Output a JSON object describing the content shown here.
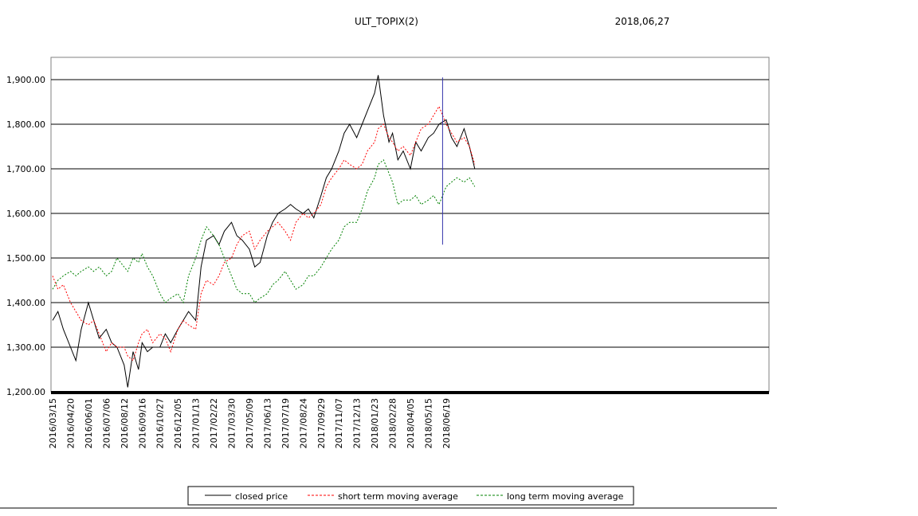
{
  "header": {
    "title": "ULT_TOPIX(2)",
    "date": "2018,06,27"
  },
  "chart_data": {
    "type": "line",
    "title": "ULT_TOPIX(2)",
    "ylim": [
      1200,
      1950
    ],
    "grid": "horizontal",
    "legend_position": "bottom",
    "x_tick_labels": [
      "2016/03/15",
      "2016/04/20",
      "2016/06/01",
      "2016/07/06",
      "2016/08/12",
      "2016/09/16",
      "2016/10/27",
      "2016/12/05",
      "2017/01/13",
      "2017/02/22",
      "2017/03/30",
      "2017/05/09",
      "2017/06/13",
      "2017/07/19",
      "2017/08/24",
      "2017/09/29",
      "2017/11/07",
      "2017/12/13",
      "2018/01/23",
      "2018/02/28",
      "2018/04/05",
      "2018/05/15",
      "2018/06/19"
    ],
    "y_tick_values": [
      1200,
      1300,
      1400,
      1500,
      1600,
      1700,
      1800,
      1900
    ],
    "y_tick_labels": [
      "1,200.00",
      "1,300.00",
      "1,400.00",
      "1,500.00",
      "1,600.00",
      "1,700.00",
      "1,800.00",
      "1,900.00"
    ],
    "series": [
      {
        "name": "closed price",
        "color": "#000000",
        "style": "solid",
        "values": [
          [
            0,
            1360
          ],
          [
            0.3,
            1380
          ],
          [
            0.6,
            1340
          ],
          [
            1,
            1300
          ],
          [
            1.3,
            1270
          ],
          [
            1.6,
            1340
          ],
          [
            2,
            1400
          ],
          [
            2.3,
            1360
          ],
          [
            2.6,
            1320
          ],
          [
            3,
            1340
          ],
          [
            3.3,
            1310
          ],
          [
            3.6,
            1300
          ],
          [
            4,
            1260
          ],
          [
            4.2,
            1210
          ],
          [
            4.5,
            1290
          ],
          [
            4.8,
            1250
          ],
          [
            5,
            1310
          ],
          [
            5.3,
            1290
          ],
          [
            5.6,
            1300
          ],
          [
            6,
            1300
          ],
          [
            6.3,
            1330
          ],
          [
            6.6,
            1310
          ],
          [
            7,
            1340
          ],
          [
            7.3,
            1360
          ],
          [
            7.6,
            1380
          ],
          [
            8,
            1360
          ],
          [
            8.3,
            1480
          ],
          [
            8.6,
            1540
          ],
          [
            9,
            1550
          ],
          [
            9.3,
            1530
          ],
          [
            9.6,
            1560
          ],
          [
            10,
            1580
          ],
          [
            10.3,
            1550
          ],
          [
            10.6,
            1540
          ],
          [
            11,
            1520
          ],
          [
            11.3,
            1480
          ],
          [
            11.6,
            1490
          ],
          [
            12,
            1550
          ],
          [
            12.3,
            1580
          ],
          [
            12.6,
            1600
          ],
          [
            13,
            1610
          ],
          [
            13.3,
            1620
          ],
          [
            13.6,
            1610
          ],
          [
            14,
            1600
          ],
          [
            14.3,
            1610
          ],
          [
            14.6,
            1590
          ],
          [
            15,
            1640
          ],
          [
            15.3,
            1680
          ],
          [
            15.6,
            1700
          ],
          [
            16,
            1740
          ],
          [
            16.3,
            1780
          ],
          [
            16.6,
            1800
          ],
          [
            17,
            1770
          ],
          [
            17.3,
            1800
          ],
          [
            17.6,
            1830
          ],
          [
            18,
            1870
          ],
          [
            18.2,
            1910
          ],
          [
            18.5,
            1820
          ],
          [
            18.8,
            1760
          ],
          [
            19,
            1780
          ],
          [
            19.3,
            1720
          ],
          [
            19.6,
            1740
          ],
          [
            20,
            1700
          ],
          [
            20.3,
            1760
          ],
          [
            20.6,
            1740
          ],
          [
            21,
            1770
          ],
          [
            21.3,
            1780
          ],
          [
            21.6,
            1800
          ],
          [
            22,
            1810
          ],
          [
            22.3,
            1770
          ],
          [
            22.6,
            1750
          ],
          [
            23,
            1790
          ],
          [
            23.3,
            1750
          ],
          [
            23.6,
            1700
          ]
        ]
      },
      {
        "name": "short term moving average",
        "color": "#ff0000",
        "style": "dashed",
        "values": [
          [
            0,
            1460
          ],
          [
            0.3,
            1430
          ],
          [
            0.6,
            1440
          ],
          [
            1,
            1400
          ],
          [
            1.3,
            1380
          ],
          [
            1.6,
            1360
          ],
          [
            2,
            1350
          ],
          [
            2.3,
            1360
          ],
          [
            2.6,
            1330
          ],
          [
            3,
            1290
          ],
          [
            3.3,
            1310
          ],
          [
            3.6,
            1300
          ],
          [
            4,
            1300
          ],
          [
            4.2,
            1280
          ],
          [
            4.5,
            1270
          ],
          [
            4.8,
            1310
          ],
          [
            5,
            1330
          ],
          [
            5.3,
            1340
          ],
          [
            5.6,
            1310
          ],
          [
            6,
            1330
          ],
          [
            6.3,
            1320
          ],
          [
            6.6,
            1290
          ],
          [
            7,
            1340
          ],
          [
            7.3,
            1360
          ],
          [
            7.6,
            1350
          ],
          [
            8,
            1340
          ],
          [
            8.3,
            1420
          ],
          [
            8.6,
            1450
          ],
          [
            9,
            1440
          ],
          [
            9.3,
            1460
          ],
          [
            9.6,
            1490
          ],
          [
            10,
            1500
          ],
          [
            10.3,
            1530
          ],
          [
            10.6,
            1550
          ],
          [
            11,
            1560
          ],
          [
            11.3,
            1520
          ],
          [
            11.6,
            1540
          ],
          [
            12,
            1560
          ],
          [
            12.3,
            1570
          ],
          [
            12.6,
            1580
          ],
          [
            13,
            1560
          ],
          [
            13.3,
            1540
          ],
          [
            13.6,
            1580
          ],
          [
            14,
            1600
          ],
          [
            14.3,
            1590
          ],
          [
            14.6,
            1600
          ],
          [
            15,
            1620
          ],
          [
            15.3,
            1660
          ],
          [
            15.6,
            1680
          ],
          [
            16,
            1700
          ],
          [
            16.3,
            1720
          ],
          [
            16.6,
            1710
          ],
          [
            17,
            1700
          ],
          [
            17.3,
            1710
          ],
          [
            17.6,
            1740
          ],
          [
            18,
            1760
          ],
          [
            18.2,
            1790
          ],
          [
            18.5,
            1800
          ],
          [
            18.8,
            1770
          ],
          [
            19,
            1760
          ],
          [
            19.3,
            1740
          ],
          [
            19.6,
            1750
          ],
          [
            20,
            1730
          ],
          [
            20.3,
            1760
          ],
          [
            20.6,
            1790
          ],
          [
            21,
            1800
          ],
          [
            21.3,
            1820
          ],
          [
            21.6,
            1840
          ],
          [
            22,
            1800
          ],
          [
            22.3,
            1780
          ],
          [
            22.6,
            1760
          ],
          [
            23,
            1770
          ],
          [
            23.3,
            1750
          ],
          [
            23.6,
            1710
          ]
        ]
      },
      {
        "name": "long term moving average",
        "color": "#008000",
        "style": "dashed",
        "values": [
          [
            0,
            1430
          ],
          [
            0.3,
            1450
          ],
          [
            0.6,
            1460
          ],
          [
            1,
            1470
          ],
          [
            1.3,
            1460
          ],
          [
            1.6,
            1470
          ],
          [
            2,
            1480
          ],
          [
            2.3,
            1470
          ],
          [
            2.6,
            1480
          ],
          [
            3,
            1460
          ],
          [
            3.3,
            1470
          ],
          [
            3.6,
            1500
          ],
          [
            4,
            1480
          ],
          [
            4.2,
            1470
          ],
          [
            4.5,
            1500
          ],
          [
            4.8,
            1490
          ],
          [
            5,
            1510
          ],
          [
            5.3,
            1480
          ],
          [
            5.6,
            1460
          ],
          [
            6,
            1420
          ],
          [
            6.3,
            1400
          ],
          [
            6.6,
            1410
          ],
          [
            7,
            1420
          ],
          [
            7.3,
            1400
          ],
          [
            7.6,
            1460
          ],
          [
            8,
            1500
          ],
          [
            8.3,
            1540
          ],
          [
            8.6,
            1570
          ],
          [
            9,
            1550
          ],
          [
            9.3,
            1530
          ],
          [
            9.6,
            1500
          ],
          [
            10,
            1460
          ],
          [
            10.3,
            1430
          ],
          [
            10.6,
            1420
          ],
          [
            11,
            1420
          ],
          [
            11.3,
            1400
          ],
          [
            11.6,
            1410
          ],
          [
            12,
            1420
          ],
          [
            12.3,
            1440
          ],
          [
            12.6,
            1450
          ],
          [
            13,
            1470
          ],
          [
            13.3,
            1450
          ],
          [
            13.6,
            1430
          ],
          [
            14,
            1440
          ],
          [
            14.3,
            1460
          ],
          [
            14.6,
            1460
          ],
          [
            15,
            1480
          ],
          [
            15.3,
            1500
          ],
          [
            15.6,
            1520
          ],
          [
            16,
            1540
          ],
          [
            16.3,
            1570
          ],
          [
            16.6,
            1580
          ],
          [
            17,
            1580
          ],
          [
            17.3,
            1610
          ],
          [
            17.6,
            1650
          ],
          [
            18,
            1680
          ],
          [
            18.2,
            1710
          ],
          [
            18.5,
            1720
          ],
          [
            18.8,
            1690
          ],
          [
            19,
            1670
          ],
          [
            19.3,
            1620
          ],
          [
            19.6,
            1630
          ],
          [
            20,
            1630
          ],
          [
            20.3,
            1640
          ],
          [
            20.6,
            1620
          ],
          [
            21,
            1630
          ],
          [
            21.3,
            1640
          ],
          [
            21.6,
            1620
          ],
          [
            22,
            1660
          ],
          [
            22.3,
            1670
          ],
          [
            22.6,
            1680
          ],
          [
            23,
            1670
          ],
          [
            23.3,
            1680
          ],
          [
            23.6,
            1660
          ]
        ]
      }
    ],
    "vertical_marker": {
      "x": 21.8,
      "y_from": 1530,
      "y_to": 1905,
      "color": "#3333aa"
    }
  }
}
